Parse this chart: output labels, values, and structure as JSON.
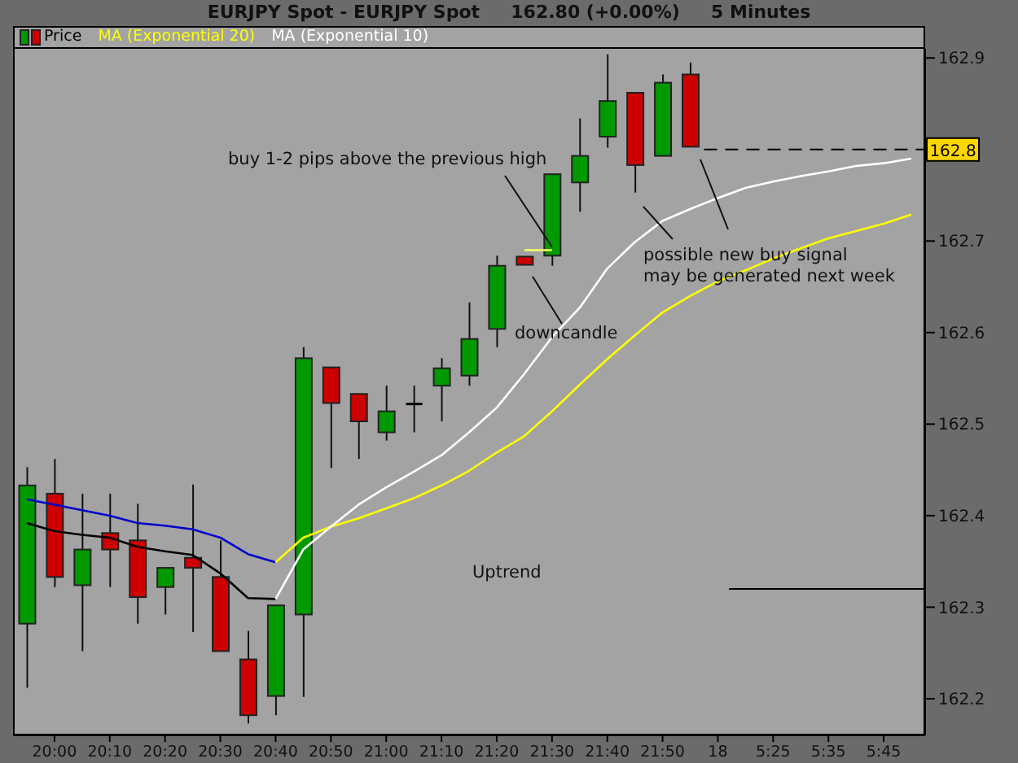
{
  "chart_data": {
    "type": "candlestick",
    "title": "EURJPY Spot - EURJPY Spot     162.80 (+0.00%)     5 Minutes",
    "categories": [
      null,
      "20:00",
      null,
      "20:10",
      null,
      "20:20",
      null,
      "20:30",
      null,
      "20:40",
      null,
      "20:50",
      null,
      "21:00",
      null,
      "21:10",
      null,
      "21:20",
      null,
      "21:30",
      null,
      "21:40",
      null,
      "21:50",
      null,
      "18",
      null,
      "5:25",
      null,
      "5:35",
      null,
      "5:45",
      null
    ],
    "series": [
      {
        "name": "Price",
        "ohlc": [
          [
            162.282,
            162.453,
            162.212,
            162.433
          ],
          [
            162.424,
            162.462,
            162.322,
            162.333
          ],
          [
            162.324,
            162.424,
            162.252,
            162.363
          ],
          [
            162.381,
            162.424,
            162.322,
            162.363
          ],
          [
            162.373,
            162.413,
            162.282,
            162.311
          ],
          [
            162.322,
            162.343,
            162.292,
            162.343
          ],
          [
            162.354,
            162.434,
            162.273,
            162.343
          ],
          [
            162.333,
            162.373,
            162.252,
            162.252
          ],
          [
            162.243,
            162.274,
            162.173,
            162.182
          ],
          [
            162.203,
            162.302,
            162.182,
            162.302
          ],
          [
            162.292,
            162.584,
            162.202,
            162.572
          ],
          [
            162.562,
            162.562,
            162.452,
            162.523
          ],
          [
            162.533,
            162.533,
            162.462,
            162.503
          ],
          [
            162.491,
            162.542,
            162.482,
            162.514
          ],
          [
            162.522,
            162.542,
            162.491,
            162.522
          ],
          [
            162.542,
            162.572,
            162.503,
            162.561
          ],
          [
            162.553,
            162.633,
            162.542,
            162.593
          ],
          [
            162.604,
            162.684,
            162.584,
            162.673
          ],
          [
            162.683,
            162.683,
            162.674,
            162.674
          ],
          [
            162.684,
            162.773,
            162.673,
            162.773
          ],
          [
            162.764,
            162.834,
            162.732,
            162.793
          ],
          [
            162.814,
            162.904,
            162.802,
            162.853
          ],
          [
            162.862,
            162.862,
            162.753,
            162.783
          ],
          [
            162.793,
            162.882,
            162.793,
            162.873
          ],
          [
            162.882,
            162.895,
            162.803,
            162.803
          ],
          null,
          null,
          null,
          null,
          null,
          null,
          null,
          null
        ],
        "colors": [
          "#009900",
          "#cc0000",
          "#009900",
          "#cc0000",
          "#cc0000",
          "#009900",
          "#cc0000",
          "#cc0000",
          "#cc0000",
          "#009900",
          "#009900",
          "#cc0000",
          "#cc0000",
          "#009900",
          "#000000",
          "#009900",
          "#009900",
          "#009900",
          "#cc0000",
          "#009900",
          "#009900",
          "#009900",
          "#cc0000",
          "#009900",
          "#cc0000",
          null,
          null,
          null,
          null,
          null,
          null,
          null,
          null
        ]
      },
      {
        "type": "line",
        "color": "#ffff66",
        "values": [
          null,
          null,
          null,
          null,
          null,
          null,
          null,
          null,
          null,
          null,
          null,
          null,
          null,
          null,
          null,
          null,
          null,
          null,
          162.69,
          162.69,
          null,
          null,
          null,
          null,
          null,
          null,
          null,
          null,
          null,
          null,
          null,
          null,
          null
        ]
      },
      {
        "type": "line",
        "color": "#0000cc",
        "values": [
          162.418,
          162.412,
          162.406,
          162.4,
          162.392,
          162.389,
          162.385,
          162.376,
          162.358,
          162.349,
          null,
          null,
          null,
          null,
          null,
          null,
          null,
          null,
          null,
          null,
          null,
          null,
          null,
          null,
          null,
          null,
          null,
          null,
          null,
          null,
          null,
          null,
          null
        ]
      },
      {
        "type": "line",
        "name": "MA (Exponential 20)",
        "color": "#ffff00",
        "values": [
          null,
          null,
          null,
          null,
          null,
          null,
          null,
          null,
          null,
          162.349,
          162.376,
          162.388,
          162.397,
          162.408,
          162.419,
          162.433,
          162.449,
          162.469,
          162.487,
          162.514,
          162.543,
          162.571,
          162.597,
          162.622,
          162.64,
          162.656,
          162.668,
          162.681,
          162.692,
          162.703,
          162.711,
          162.719,
          162.729
        ]
      },
      {
        "type": "line",
        "color": "#000000",
        "values": [
          162.392,
          162.383,
          162.379,
          162.376,
          162.366,
          162.361,
          162.357,
          162.337,
          162.31,
          162.309,
          null,
          null,
          null,
          null,
          null,
          null,
          null,
          null,
          null,
          null,
          null,
          null,
          null,
          null,
          null,
          null,
          null,
          null,
          null,
          null,
          null,
          null,
          null
        ]
      },
      {
        "type": "line",
        "name": "MA (Exponential 10)",
        "color": "#ffffff",
        "values": [
          null,
          null,
          null,
          null,
          null,
          null,
          null,
          null,
          null,
          162.309,
          162.363,
          162.388,
          162.412,
          162.431,
          162.448,
          162.466,
          162.491,
          162.518,
          162.555,
          162.595,
          162.627,
          162.67,
          162.699,
          162.722,
          162.735,
          162.747,
          162.758,
          162.765,
          162.771,
          162.776,
          162.782,
          162.785,
          162.79
        ]
      }
    ],
    "ylim": [
      162.16,
      162.91
    ],
    "yticks": [
      162.2,
      162.3,
      162.4,
      162.5,
      162.6,
      162.7,
      162.9
    ],
    "ref_lines": [
      {
        "axis": "y",
        "value": 162.8,
        "label": "162.8",
        "color": "#000000",
        "line_style": "dashed"
      },
      {
        "axis": "y",
        "value": 162.32,
        "color": "#000000"
      }
    ],
    "annotations": [
      {
        "text": "buy 1-2 pips above the previous high",
        "x": "21:30",
        "y": 162.69
      },
      "downcandle",
      "possible new buy signal\nmay be generated next week",
      "Uptrend"
    ],
    "legend": "top left",
    "grid": false
  }
}
